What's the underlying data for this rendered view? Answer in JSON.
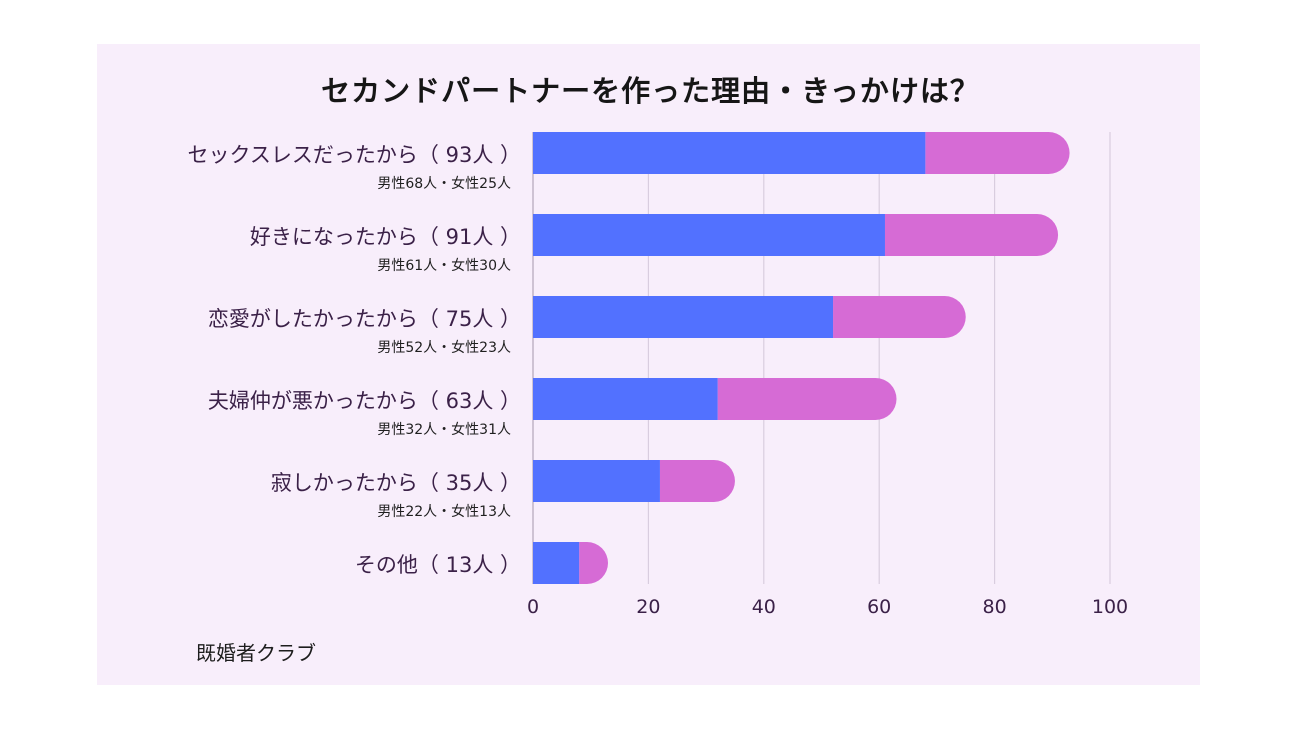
{
  "chart_data": {
    "type": "bar",
    "orientation": "horizontal",
    "stacked": true,
    "title": "セカンドパートナーを作った理由・きっかけは？",
    "categories": [
      "セックスレスだったから（ 93人 ）",
      "好きになったから（ 91人 ）",
      "恋愛がしたかったから（ 75人 ）",
      "夫婦仲が悪かったから（ 63人 ）",
      "寂しかったから（ 35人 ）",
      "その他（ 13人 ）"
    ],
    "sublabels": [
      "男性68人・女性25人",
      "男性61人・女性30人",
      "男性52人・女性23人",
      "男性32人・女性31人",
      "男性22人・女性13人",
      ""
    ],
    "series": [
      {
        "values": [
          68,
          61,
          52,
          32,
          22,
          8
        ],
        "color": "#5271ff"
      },
      {
        "values": [
          25,
          30,
          23,
          31,
          13,
          5
        ],
        "color": "#d66bd5"
      }
    ],
    "xlim": [
      0,
      100
    ],
    "xticks": [
      "0",
      "20",
      "40",
      "60",
      "80",
      "100"
    ],
    "grid": true
  },
  "source": "既婚者クラブ"
}
